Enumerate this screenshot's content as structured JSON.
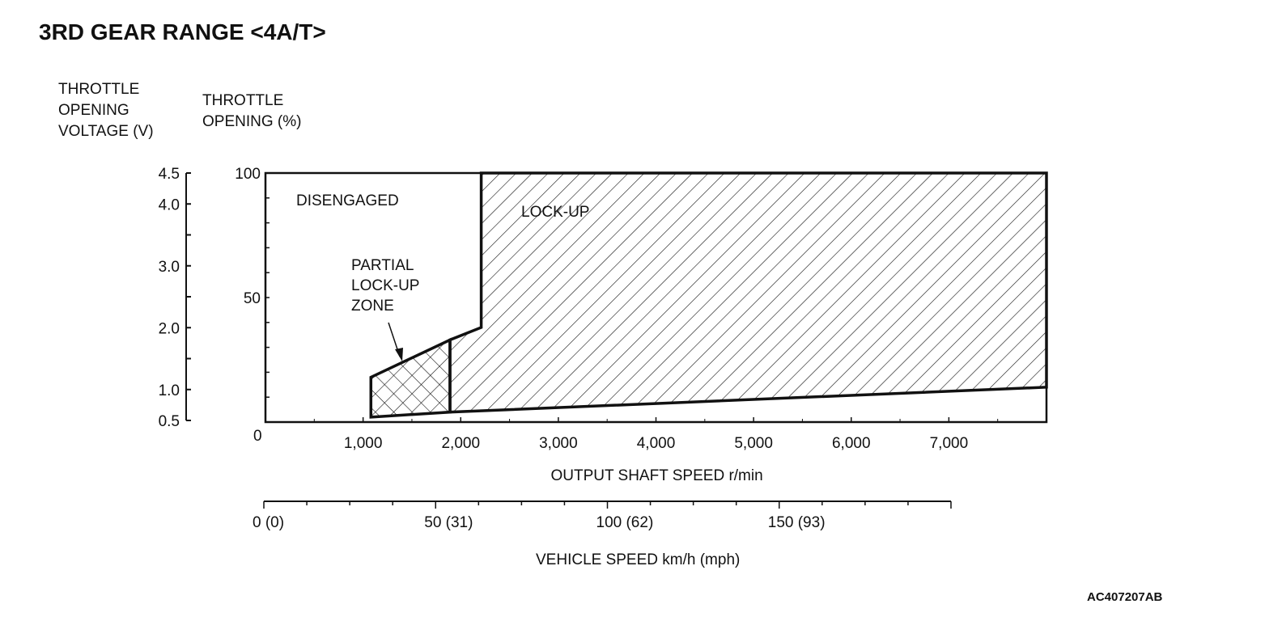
{
  "title": "3RD GEAR RANGE <4A/T>",
  "figure_code": "AC407207AB",
  "chart_data": {
    "type": "area",
    "title": "3RD GEAR RANGE <4A/T>",
    "xlabel": "OUTPUT SHAFT SPEED r/min",
    "ylabel": "THROTTLE OPENING (%)",
    "ylabel_secondary": "THROTTLE OPENING VOLTAGE (V)",
    "xlabel_secondary": "VEHICLE SPEED km/h (mph)",
    "xlim": [
      0,
      8000
    ],
    "ylim": [
      0,
      100
    ],
    "x_ticks": [
      {
        "v": 1000,
        "label": "1,000"
      },
      {
        "v": 2000,
        "label": "2,000"
      },
      {
        "v": 3000,
        "label": "3,000"
      },
      {
        "v": 4000,
        "label": "4,000"
      },
      {
        "v": 5000,
        "label": "5,000"
      },
      {
        "v": 6000,
        "label": "6,000"
      },
      {
        "v": 7000,
        "label": "7,000"
      }
    ],
    "x_zero_label": "0",
    "y_ticks": [
      {
        "v": 100,
        "label": "100"
      },
      {
        "v": 50,
        "label": "50"
      }
    ],
    "voltage_ticks": [
      {
        "v": 4.5,
        "label": "4.5"
      },
      {
        "v": 4.0,
        "label": "4.0"
      },
      {
        "v": 3.0,
        "label": "3.0"
      },
      {
        "v": 2.0,
        "label": "2.0"
      },
      {
        "v": 1.0,
        "label": "1.0"
      },
      {
        "v": 0.5,
        "label": "0.5"
      }
    ],
    "voltage_range": [
      0.5,
      4.5
    ],
    "speed_range_kmh": [
      0,
      200
    ],
    "speed_ticks": [
      {
        "v": 0,
        "label": "0 (0)"
      },
      {
        "v": 50,
        "label": "50 (31)"
      },
      {
        "v": 100,
        "label": "100 (62)"
      },
      {
        "v": 150,
        "label": "150 (93)"
      }
    ],
    "regions": [
      {
        "name": "PARTIAL LOCK-UP ZONE",
        "pattern": "crosshatch",
        "points": [
          [
            1080,
            2
          ],
          [
            1080,
            18
          ],
          [
            1890,
            33
          ],
          [
            1890,
            4
          ]
        ]
      },
      {
        "name": "LOCK-UP",
        "pattern": "hatch",
        "points": [
          [
            1890,
            4
          ],
          [
            1890,
            33
          ],
          [
            2210,
            38
          ],
          [
            2210,
            100
          ],
          [
            8000,
            100
          ],
          [
            8000,
            14
          ]
        ]
      }
    ],
    "annotations": {
      "disengaged": "DISENGAGED",
      "lockup": "LOCK-UP",
      "partial": [
        "PARTIAL",
        "LOCK-UP",
        "ZONE"
      ]
    }
  }
}
